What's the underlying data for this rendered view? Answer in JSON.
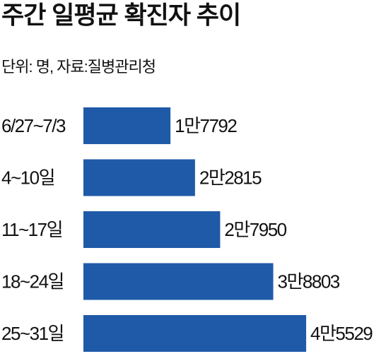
{
  "chart_data": {
    "type": "bar",
    "orientation": "horizontal",
    "title": "주간 일평균 확진자 추이",
    "subtitle": "단위: 명, 자료:질병관리청",
    "categories": [
      "6/27~7/3",
      "4~10일",
      "11~17일",
      "18~24일",
      "25~31일"
    ],
    "values": [
      17792,
      22815,
      27950,
      38803,
      45529
    ],
    "value_labels": [
      "1만7792",
      "2만2815",
      "2만7950",
      "3만8803",
      "4만5529"
    ],
    "color": "#1f5aa8"
  }
}
